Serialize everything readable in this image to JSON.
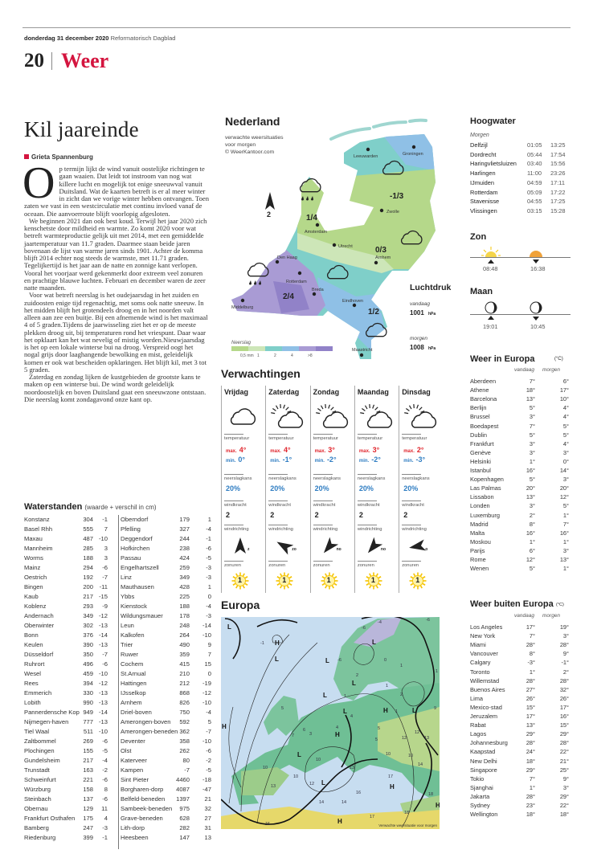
{
  "header": {
    "date": "donderdag 31 december 2020",
    "paper": "Reformatorisch Dagblad",
    "page_number": "20",
    "section": "Weer"
  },
  "article": {
    "title": "Kil jaareinde",
    "author": "Grieta Spannenburg",
    "dropcap": "O",
    "paragraphs": [
      "p termijn lijkt de wind vanuit oostelijke richtingen te gaan waaien. Dat leidt tot instroom van nog wat killere lucht en mogelijk tot enige sneeuwval vanuit Duitsland. Wat de kaarten betreft is er al meer winter in zicht dan we vorige winter hebben ontvangen. Toen zaten we vast in een westcirculatie met continu invloed vanaf de oceaan. Die aanvoerroute blijft voorlopig afgesloten.",
      "We beginnen 2021 dan ook best koud. Terwijl het jaar 2020 zich kenschetste door mildheid en warmte. Zo komt 2020 voor wat betreft warmteproductie gelijk uit met 2014, met een gemiddelde jaartemperatuur van 11.7 graden. Daarmee staan beide jaren bovenaan de lijst van warme jaren sinds 1901. Achter de komma blijft 2014 echter nog steeds de warmste, met 11.71 graden. Tegelijkertijd is het jaar aan de natte en zonnige kant verlopen. Vooral het voorjaar werd gekenmerkt door extreem veel zonuren en prachtige blauwe luchten. Februari en december waren de zeer natte maanden.",
      "Voor wat betreft neerslag is het oudejaarsdag in het zuiden en zuidoosten enige tijd regenachtig, met soms ook natte sneeuw. In het midden blijft het grotendeels droog en in het noorden valt alleen aan zee een buitje. Bij een afnemende wind is het maximaal 4 of 5 graden.Tijdens de jaarwisseling ziet het er op de meeste plekken droog uit, bij temperaturen rond het vriespunt. Daar waar het opklaart kan het wat nevelig of mistig worden.Nieuwjaarsdag is het op een lokale winterse bui na droog. Verspreid oogt het nogal grijs door laaghangende bewolking en mist, geleidelijk komen er ook wat bescheiden opklaringen. Het blijft kil, met 3 tot 5 graden.",
      "Zaterdag en zondag lijken de kustgebieden de grootste kans te maken op een winterse bui. De wind wordt geleidelijk noordoostelijk en boven Duitsland gaat een sneeuwzone ontstaan. Die neerslag komt zondagavond onze kant op."
    ]
  },
  "waterstanden": {
    "title": "Waterstanden",
    "subtitle": "(waarde + verschil in cm)",
    "left": [
      [
        "Konstanz",
        "304",
        "-1"
      ],
      [
        "Basel Rhh",
        "555",
        "7"
      ],
      [
        "Maxau",
        "487",
        "-10"
      ],
      [
        "Mannheim",
        "285",
        "3"
      ],
      [
        "Worms",
        "188",
        "3"
      ],
      [
        "Mainz",
        "294",
        "-6"
      ],
      [
        "Oestrich",
        "192",
        "-7"
      ],
      [
        "Bingen",
        "200",
        "-11"
      ],
      [
        "Kaub",
        "217",
        "-15"
      ],
      [
        "Koblenz",
        "293",
        "-9"
      ],
      [
        "Andernach",
        "349",
        "-12"
      ],
      [
        "Oberwinter",
        "302",
        "-13"
      ],
      [
        "Bonn",
        "376",
        "-14"
      ],
      [
        "Keulen",
        "390",
        "-13"
      ],
      [
        "Düsseldorf",
        "350",
        "-7"
      ],
      [
        "Ruhrort",
        "496",
        "-6"
      ],
      [
        "Wesel",
        "459",
        "-10"
      ],
      [
        "Rees",
        "394",
        "-12"
      ],
      [
        "Emmerich",
        "330",
        "-13"
      ],
      [
        "Lobith",
        "990",
        "-13"
      ],
      [
        "Pannerdensche Kop",
        "949",
        "-14"
      ],
      [
        "Nijmegen-haven",
        "777",
        "-13"
      ],
      [
        "Tiel Waal",
        "511",
        "-10"
      ],
      [
        "Zaltbommel",
        "269",
        "-6"
      ],
      [
        "Plochingen",
        "155",
        "-5"
      ],
      [
        "Gundelsheim",
        "217",
        "-4"
      ],
      [
        "Trunstadt",
        "163",
        "-2"
      ],
      [
        "Schweinfurt",
        "221",
        "-6"
      ],
      [
        "Würzburg",
        "158",
        "8"
      ],
      [
        "Steinbach",
        "137",
        "-6"
      ],
      [
        "Obernau",
        "129",
        "11"
      ],
      [
        "Frankfurt Osthafen",
        "175",
        "4"
      ],
      [
        "Bamberg",
        "247",
        "-3"
      ],
      [
        "Riedenburg",
        "399",
        "-1"
      ]
    ],
    "right": [
      [
        "Oberndorf",
        "179",
        "1"
      ],
      [
        "Pfelling",
        "327",
        "-4"
      ],
      [
        "Deggendorf",
        "244",
        "-1"
      ],
      [
        "Hofkirchen",
        "238",
        "-6"
      ],
      [
        "Passau",
        "424",
        "-5"
      ],
      [
        "Engelhartszell",
        "259",
        "-3"
      ],
      [
        "Linz",
        "349",
        "-3"
      ],
      [
        "Mauthausen",
        "428",
        "1"
      ],
      [
        "Ybbs",
        "225",
        "0"
      ],
      [
        "Kienstock",
        "188",
        "-4"
      ],
      [
        "Wildungsmauer",
        "178",
        "-3"
      ],
      [
        "Leun",
        "248",
        "-14"
      ],
      [
        "Kalkofen",
        "264",
        "-10"
      ],
      [
        "Trier",
        "490",
        "9"
      ],
      [
        "Ruwer",
        "359",
        "7"
      ],
      [
        "Cochem",
        "415",
        "15"
      ],
      [
        "St.Arnual",
        "210",
        "0"
      ],
      [
        "Hattingen",
        "212",
        "-19"
      ],
      [
        "IJsselkop",
        "868",
        "-12"
      ],
      [
        "Arnhem",
        "826",
        "-10"
      ],
      [
        "Driel-boven",
        "750",
        "-4"
      ],
      [
        "Amerongen-boven",
        "592",
        "5"
      ],
      [
        "Amerongen-beneden",
        "362",
        "-7"
      ],
      [
        "Deventer",
        "358",
        "-10"
      ],
      [
        "Olst",
        "262",
        "-6"
      ],
      [
        "Katerveer",
        "80",
        "-2"
      ],
      [
        "Kampen",
        "-7",
        "-5"
      ],
      [
        "Sint Pieter",
        "4460",
        "-18"
      ],
      [
        "Borgharen-dorp",
        "4087",
        "-47"
      ],
      [
        "Belfeld-beneden",
        "1397",
        "21"
      ],
      [
        "Sambeek-beneden",
        "975",
        "32"
      ],
      [
        "Grave-beneden",
        "628",
        "27"
      ],
      [
        "Lith-dorp",
        "282",
        "31"
      ],
      [
        "Heesbeen",
        "147",
        "13"
      ]
    ]
  },
  "nederland": {
    "title": "Nederland",
    "subtitle": [
      "verwachte weersituaties",
      "voor morgen",
      "© WeerKantoor.com"
    ],
    "cities": [
      "Leeuwarden",
      "Groningen",
      "Zwolle",
      "Amsterdam",
      "Utrecht",
      "Arnhem",
      "Den Haag",
      "Rotterdam",
      "Breda",
      "Eindhoven",
      "Middelburg",
      "Maastricht"
    ],
    "temps": [
      "-1/3",
      "1/4",
      "0/3",
      "2/4",
      "1/2"
    ],
    "wind_force": "2",
    "legend": {
      "title": "Neerslag",
      "labels": [
        "0,5 mm",
        "1",
        "2",
        "4",
        ">8"
      ],
      "colors": [
        "#b5d88a",
        "#cde6b8",
        "#7fcfc9",
        "#8fc0e6",
        "#a99bd4",
        "#9182c8"
      ]
    },
    "luchtdruk": {
      "title": "Luchtdruk",
      "today_label": "vandaag",
      "today": "1001",
      "tomorrow_label": "morgen",
      "tomorrow": "1008",
      "unit": "hPa"
    }
  },
  "verwachtingen": {
    "title": "Verwachtingen",
    "labels": {
      "temp": "temperatuur",
      "max": "max.",
      "min": "min.",
      "rain": "neerslagkans",
      "windforce": "windkracht",
      "winddir": "windrichting",
      "sun": "zonuren"
    },
    "days": [
      {
        "day": "Vrijdag",
        "icon": "cloud",
        "max": "4°",
        "min": "0°",
        "rain": "20%",
        "wind": "2",
        "dir": "z",
        "sun": "1"
      },
      {
        "day": "Zaterdag",
        "icon": "sun-cloud",
        "max": "4°",
        "min": "-1°",
        "rain": "20%",
        "wind": "2",
        "dir": "zo",
        "sun": "1"
      },
      {
        "day": "Zondag",
        "icon": "sun-cloud",
        "max": "3°",
        "min": "-2°",
        "rain": "20%",
        "wind": "2",
        "dir": "no",
        "sun": "1"
      },
      {
        "day": "Maandag",
        "icon": "sun-cloud",
        "max": "3°",
        "min": "-2°",
        "rain": "20%",
        "wind": "2",
        "dir": "no",
        "sun": "1"
      },
      {
        "day": "Dinsdag",
        "icon": "sun-cloud",
        "max": "2°",
        "min": "-3°",
        "rain": "20%",
        "wind": "2",
        "dir": "o",
        "sun": "1"
      }
    ]
  },
  "europa_map": {
    "title": "Europa",
    "caption": "Verwachte weersituatie voor morgen",
    "labels": [
      "L",
      "H",
      "L",
      "L",
      "L",
      "L",
      "L",
      "H",
      "L",
      "L",
      "H",
      "L",
      "L",
      "H",
      "H",
      "H",
      "H",
      "-1",
      "5",
      "6",
      "7",
      "3",
      "4",
      "4",
      "2",
      "1",
      "-6",
      "0",
      "1",
      "1",
      "2",
      "1",
      "5",
      "5",
      "12",
      "13",
      "12",
      "10",
      "10",
      "14",
      "17",
      "18",
      "18",
      "17",
      "14",
      "14",
      "15",
      "13",
      "10",
      "10",
      "12",
      "16",
      "13",
      "10",
      "-4",
      "-6",
      "-6",
      "1",
      "9"
    ]
  },
  "hoogwater": {
    "title": "Hoogwater",
    "subtitle": "Morgen",
    "rows": [
      [
        "Delfzijl",
        "01:05",
        "13:25"
      ],
      [
        "Dordrecht",
        "05:44",
        "17:54"
      ],
      [
        "Haringvlietsluizen",
        "03:40",
        "15:56"
      ],
      [
        "Harlingen",
        "11:00",
        "23:26"
      ],
      [
        "IJmuiden",
        "04:59",
        "17:11"
      ],
      [
        "Rotterdam",
        "05:09",
        "17:22"
      ],
      [
        "Stavenisse",
        "04:55",
        "17:25"
      ],
      [
        "Vlissingen",
        "03:15",
        "15:28"
      ]
    ]
  },
  "zon": {
    "title": "Zon",
    "rise": "08:48",
    "set": "16:38"
  },
  "maan": {
    "title": "Maan",
    "rise": "19:01",
    "set": "10:45"
  },
  "weer_europa": {
    "title": "Weer in Europa",
    "unit": "(°C)",
    "col1": "vandaag",
    "col2": "morgen",
    "rows": [
      [
        "Aberdeen",
        "7°",
        "6°"
      ],
      [
        "Athene",
        "18°",
        "17°"
      ],
      [
        "Barcelona",
        "13°",
        "10°"
      ],
      [
        "Berlijn",
        "5°",
        "4°"
      ],
      [
        "Brussel",
        "3°",
        "4°"
      ],
      [
        "Boedapest",
        "7°",
        "5°"
      ],
      [
        "Dublin",
        "5°",
        "5°"
      ],
      [
        "Frankfurt",
        "3°",
        "4°"
      ],
      [
        "Genève",
        "3°",
        "3°"
      ],
      [
        "Helsinki",
        "1°",
        "0°"
      ],
      [
        "Istanbul",
        "16°",
        "14°"
      ],
      [
        "Kopenhagen",
        "5°",
        "3°"
      ],
      [
        "Las Palmas",
        "20°",
        "20°"
      ],
      [
        "Lissabon",
        "13°",
        "12°"
      ],
      [
        "Londen",
        "3°",
        "5°"
      ],
      [
        "Luxemburg",
        "2°",
        "1°"
      ],
      [
        "Madrid",
        "8°",
        "7°"
      ],
      [
        "Malta",
        "16°",
        "16°"
      ],
      [
        "Moskou",
        "1°",
        "1°"
      ],
      [
        "Parijs",
        "6°",
        "3°"
      ],
      [
        "Rome",
        "12°",
        "13°"
      ],
      [
        "Wenen",
        "5°",
        "1°"
      ]
    ]
  },
  "weer_buiten": {
    "title": "Weer buiten Europa",
    "unit": "(°C)",
    "col1": "vandaag",
    "col2": "morgen",
    "rows": [
      [
        "Los Angeles",
        "17°",
        "19°"
      ],
      [
        "New York",
        "7°",
        "3°"
      ],
      [
        "Miami",
        "28°",
        "28°"
      ],
      [
        "Vancouver",
        "8°",
        "9°"
      ],
      [
        "Calgary",
        "-3°",
        "-1°"
      ],
      [
        "Toronto",
        "1°",
        "2°"
      ],
      [
        "Willemstad",
        "28°",
        "28°"
      ],
      [
        "Buenos Aires",
        "27°",
        "32°"
      ],
      [
        "Lima",
        "26°",
        "26°"
      ],
      [
        "Mexico-stad",
        "15°",
        "17°"
      ],
      [
        "Jeruzalem",
        "17°",
        "16°"
      ],
      [
        "Rabat",
        "13°",
        "15°"
      ],
      [
        "Lagos",
        "29°",
        "29°"
      ],
      [
        "Johannesburg",
        "28°",
        "28°"
      ],
      [
        "Kaapstad",
        "24°",
        "22°"
      ],
      [
        "New Delhi",
        "18°",
        "21°"
      ],
      [
        "Singapore",
        "29°",
        "25°"
      ],
      [
        "Tokio",
        "7°",
        "9°"
      ],
      [
        "Sjanghai",
        "1°",
        "3°"
      ],
      [
        "Jakarta",
        "28°",
        "29°"
      ],
      [
        "Sydney",
        "23°",
        "22°"
      ],
      [
        "Wellington",
        "18°",
        "18°"
      ]
    ]
  },
  "colors": {
    "brand": "#d4153f",
    "max": "#e0262d",
    "min": "#2f7dc2",
    "sun": "#f5c400"
  }
}
